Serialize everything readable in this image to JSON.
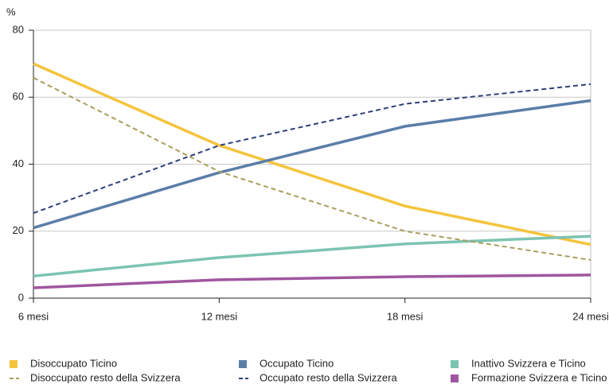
{
  "chart_data": {
    "type": "line",
    "y_label": "%",
    "categories": [
      "6 mesi",
      "12 mesi",
      "18 mesi",
      "24 mesi"
    ],
    "ylim": [
      0,
      80
    ],
    "yticks": [
      0,
      20,
      40,
      60,
      80
    ],
    "grid": true,
    "series": [
      {
        "name": "Disoccupato Ticino",
        "color": "#f4c43c",
        "dashed": false,
        "values": [
          70,
          45.6,
          27.5,
          16
        ]
      },
      {
        "name": "Occupato Ticino",
        "color": "#5a7ea8",
        "dashed": false,
        "values": [
          21,
          37.5,
          51.3,
          59
        ]
      },
      {
        "name": "Inattivo Svizzera e Ticino",
        "color": "#7cc4b2",
        "dashed": false,
        "values": [
          6.6,
          12.1,
          16.2,
          18.5
        ]
      },
      {
        "name": "Disoccupato resto della Svizzera",
        "color": "#a89f5c",
        "dashed": true,
        "values": [
          65.8,
          37.8,
          20,
          11.4
        ]
      },
      {
        "name": "Occupato resto della Svizzera",
        "color": "#2e4078",
        "dashed": true,
        "values": [
          25.4,
          45.6,
          58,
          63.9
        ]
      },
      {
        "name": "Formazione Svizzera e Ticino",
        "color": "#a0569e",
        "dashed": false,
        "values": [
          3.1,
          5.5,
          6.4,
          6.9
        ]
      }
    ]
  }
}
